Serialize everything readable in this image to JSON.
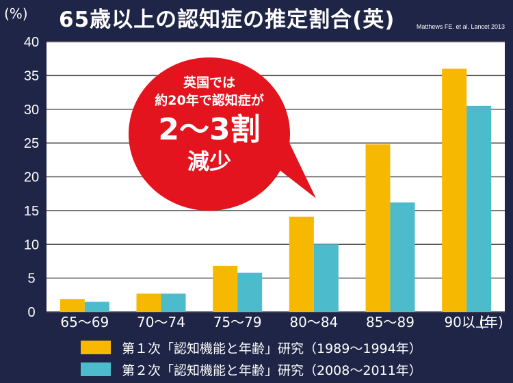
{
  "header": {
    "y_unit": "(%)",
    "title": "65歳以上の認知症の推定割合(英)",
    "source": "Matthews FE. et al. Lancet 2013"
  },
  "callout": {
    "line1": "英国では",
    "line2": "約20年で認知症が",
    "big": "2〜3割",
    "last": "減少",
    "color": "#e3141e"
  },
  "chart_data": {
    "type": "bar",
    "categories": [
      "65〜69",
      "70〜74",
      "75〜79",
      "80〜84",
      "85〜89",
      "90以上"
    ],
    "x_unit": "(年)",
    "ylim": [
      0,
      40
    ],
    "yticks": [
      0,
      5,
      10,
      15,
      20,
      25,
      30,
      35,
      40
    ],
    "grid": true,
    "series": [
      {
        "name": "第１次「認知機能と年齢」研究（1989〜1994年）",
        "color": "#f6b800",
        "values": [
          1.9,
          2.7,
          6.8,
          14.1,
          24.8,
          36.0
        ]
      },
      {
        "name": "第２次「認知機能と年齢」研究（2008〜2011年）",
        "color": "#4cbccd",
        "values": [
          1.5,
          2.7,
          5.8,
          10.0,
          16.2,
          30.5
        ]
      }
    ],
    "legend_position": "bottom"
  }
}
